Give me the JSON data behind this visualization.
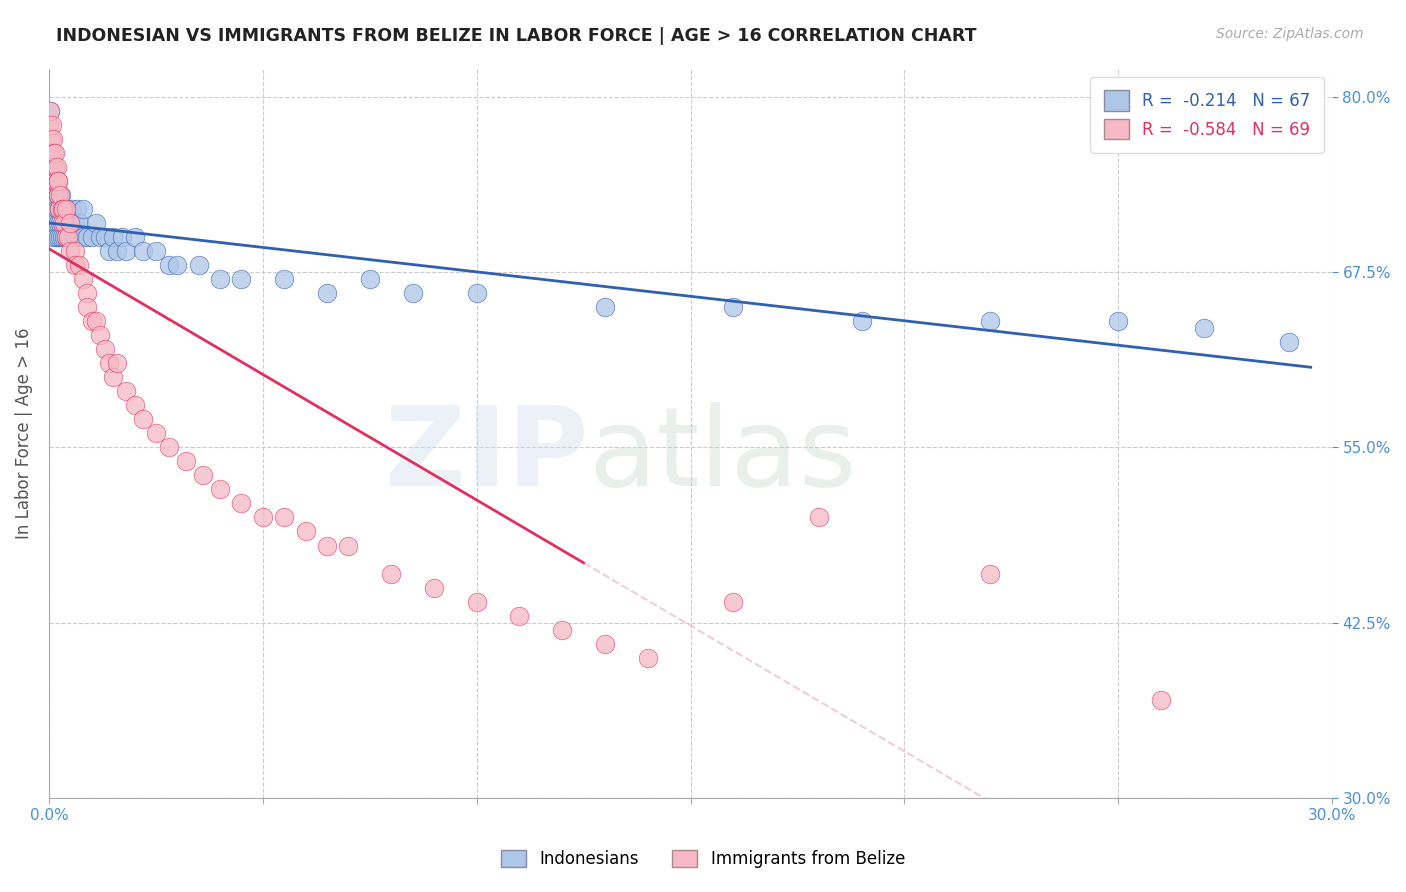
{
  "title": "INDONESIAN VS IMMIGRANTS FROM BELIZE IN LABOR FORCE | AGE > 16 CORRELATION CHART",
  "source_text": "Source: ZipAtlas.com",
  "ylabel": "In Labor Force | Age > 16",
  "xlim": [
    0.0,
    0.3
  ],
  "ylim": [
    0.3,
    0.82
  ],
  "xticks": [
    0.0,
    0.05,
    0.1,
    0.15,
    0.2,
    0.25,
    0.3
  ],
  "xticklabels": [
    "0.0%",
    "",
    "",
    "",
    "",
    "",
    "30.0%"
  ],
  "yticks": [
    0.3,
    0.425,
    0.55,
    0.675,
    0.8
  ],
  "yticklabels_right": [
    "30.0%",
    "42.5%",
    "55.0%",
    "67.5%",
    "80.0%"
  ],
  "blue_R": -0.214,
  "blue_N": 67,
  "pink_R": -0.584,
  "pink_N": 69,
  "blue_label": "Indonesians",
  "pink_label": "Immigrants from Belize",
  "blue_color": "#aec6e8",
  "pink_color": "#f5b8c4",
  "blue_line_color": "#3060b0",
  "pink_line_color": "#e03060",
  "pink_dash_color": "#e0b0bc",
  "background_color": "#ffffff",
  "grid_color": "#cccccc",
  "title_color": "#222222",
  "axis_label_color": "#555555",
  "right_tick_color": "#4a90d9",
  "blue_scatter_x": [
    0.0002,
    0.0004,
    0.0006,
    0.0008,
    0.001,
    0.001,
    0.0012,
    0.0014,
    0.0015,
    0.0016,
    0.0018,
    0.002,
    0.002,
    0.0022,
    0.0024,
    0.0025,
    0.0026,
    0.0028,
    0.003,
    0.003,
    0.0032,
    0.0035,
    0.0038,
    0.004,
    0.004,
    0.0042,
    0.0045,
    0.005,
    0.005,
    0.0055,
    0.006,
    0.006,
    0.0065,
    0.007,
    0.007,
    0.008,
    0.008,
    0.009,
    0.01,
    0.011,
    0.012,
    0.013,
    0.014,
    0.015,
    0.016,
    0.017,
    0.018,
    0.02,
    0.022,
    0.025,
    0.028,
    0.03,
    0.035,
    0.04,
    0.045,
    0.055,
    0.065,
    0.075,
    0.085,
    0.1,
    0.13,
    0.16,
    0.19,
    0.22,
    0.25,
    0.27,
    0.29
  ],
  "blue_scatter_y": [
    0.79,
    0.74,
    0.72,
    0.75,
    0.7,
    0.72,
    0.74,
    0.71,
    0.73,
    0.7,
    0.72,
    0.71,
    0.73,
    0.7,
    0.72,
    0.7,
    0.71,
    0.73,
    0.7,
    0.72,
    0.71,
    0.7,
    0.72,
    0.71,
    0.7,
    0.72,
    0.7,
    0.71,
    0.7,
    0.72,
    0.7,
    0.71,
    0.72,
    0.7,
    0.71,
    0.7,
    0.72,
    0.7,
    0.7,
    0.71,
    0.7,
    0.7,
    0.69,
    0.7,
    0.69,
    0.7,
    0.69,
    0.7,
    0.69,
    0.69,
    0.68,
    0.68,
    0.68,
    0.67,
    0.67,
    0.67,
    0.66,
    0.67,
    0.66,
    0.66,
    0.65,
    0.65,
    0.64,
    0.64,
    0.64,
    0.635,
    0.625
  ],
  "pink_scatter_x": [
    0.0001,
    0.0002,
    0.0003,
    0.0004,
    0.0005,
    0.0006,
    0.0007,
    0.0008,
    0.0009,
    0.001,
    0.001,
    0.0012,
    0.0013,
    0.0014,
    0.0015,
    0.0016,
    0.0018,
    0.002,
    0.002,
    0.0022,
    0.0024,
    0.0025,
    0.003,
    0.003,
    0.0032,
    0.0035,
    0.004,
    0.004,
    0.0045,
    0.005,
    0.005,
    0.006,
    0.006,
    0.007,
    0.008,
    0.009,
    0.009,
    0.01,
    0.011,
    0.012,
    0.013,
    0.014,
    0.015,
    0.016,
    0.018,
    0.02,
    0.022,
    0.025,
    0.028,
    0.032,
    0.036,
    0.04,
    0.045,
    0.05,
    0.055,
    0.06,
    0.065,
    0.07,
    0.08,
    0.09,
    0.1,
    0.11,
    0.12,
    0.13,
    0.14,
    0.16,
    0.18,
    0.22,
    0.26
  ],
  "pink_scatter_y": [
    0.78,
    0.75,
    0.79,
    0.77,
    0.76,
    0.75,
    0.78,
    0.76,
    0.75,
    0.77,
    0.74,
    0.76,
    0.74,
    0.75,
    0.76,
    0.74,
    0.75,
    0.73,
    0.74,
    0.74,
    0.72,
    0.73,
    0.72,
    0.71,
    0.72,
    0.71,
    0.7,
    0.72,
    0.7,
    0.71,
    0.69,
    0.69,
    0.68,
    0.68,
    0.67,
    0.66,
    0.65,
    0.64,
    0.64,
    0.63,
    0.62,
    0.61,
    0.6,
    0.61,
    0.59,
    0.58,
    0.57,
    0.56,
    0.55,
    0.54,
    0.53,
    0.52,
    0.51,
    0.5,
    0.5,
    0.49,
    0.48,
    0.48,
    0.46,
    0.45,
    0.44,
    0.43,
    0.42,
    0.41,
    0.4,
    0.44,
    0.5,
    0.46,
    0.37
  ],
  "pink_line_end_x": 0.125,
  "blue_line_start_x": 0.0,
  "blue_line_end_x": 0.295
}
